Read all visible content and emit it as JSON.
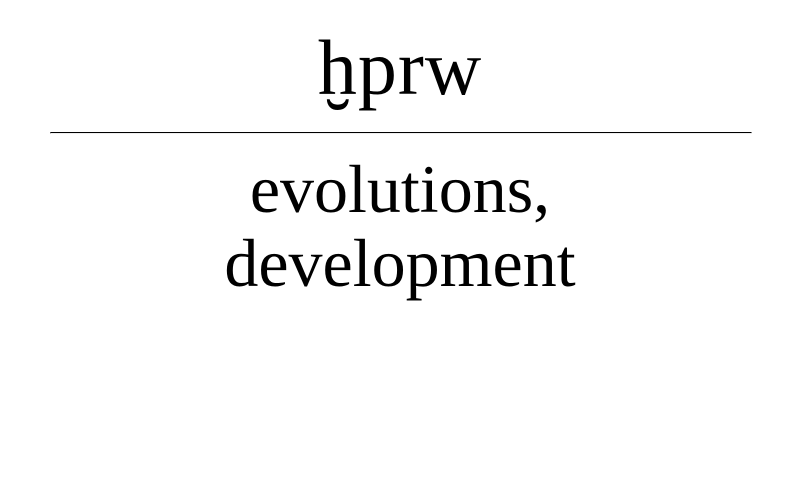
{
  "entry": {
    "headword": "ḫprw",
    "gloss_lines": [
      "evolutions,",
      "development"
    ]
  }
}
